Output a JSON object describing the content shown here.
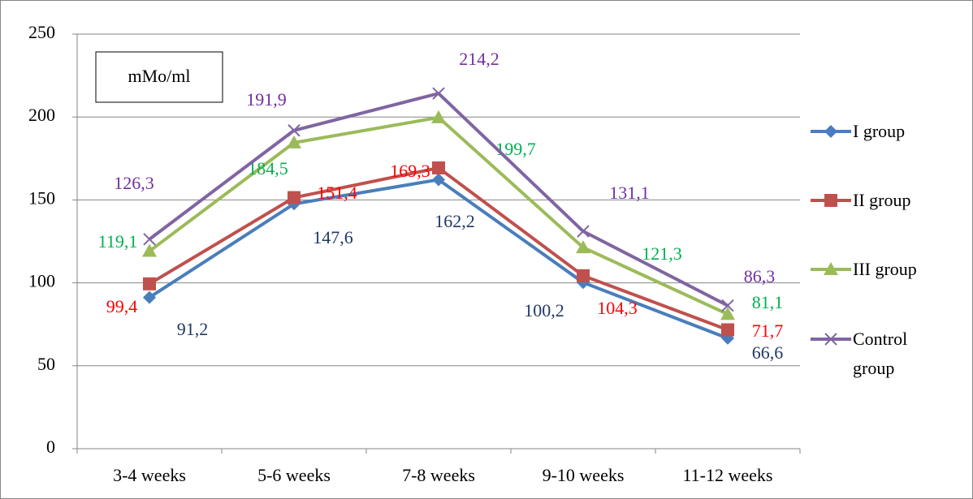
{
  "chart_data": {
    "type": "line",
    "annotation": "mMo/ml",
    "categories": [
      "3-4 weeks",
      "5-6 weeks",
      "7-8 weeks",
      "9-10 weeks",
      "11-12 weeks"
    ],
    "series": [
      {
        "name": "I group",
        "color": "#4a7ebb",
        "label_color": "#1f3864",
        "marker": "diamond",
        "values": [
          91.2,
          147.6,
          162.2,
          100.2,
          66.6
        ],
        "value_labels": [
          "91,2",
          "147,6",
          "162,2",
          "100,2",
          "66,6"
        ]
      },
      {
        "name": "II group",
        "color": "#c0504d",
        "label_color": "#ff0000",
        "marker": "square",
        "values": [
          99.4,
          151.4,
          169.3,
          104.3,
          71.7
        ],
        "value_labels": [
          "99,4",
          "151,4",
          "169,3",
          "104,3",
          "71,7"
        ]
      },
      {
        "name": "III group",
        "color": "#9bbb59",
        "label_color": "#00b050",
        "marker": "triangle",
        "values": [
          119.1,
          184.5,
          199.7,
          121.3,
          81.1
        ],
        "value_labels": [
          "119,1",
          "184,5",
          "199,7",
          "121,3",
          "81,1"
        ]
      },
      {
        "name": "Control group",
        "color": "#8064a2",
        "label_color": "#7030a0",
        "marker": "x",
        "values": [
          126.3,
          191.9,
          214.2,
          131.1,
          86.3
        ],
        "value_labels": [
          "126,3",
          "191,9",
          "214,2",
          "131,1",
          "86,3"
        ]
      }
    ],
    "ylim": [
      0,
      250
    ],
    "yticks": [
      0,
      50,
      100,
      150,
      200,
      250
    ],
    "grid": true,
    "legend": "right"
  }
}
